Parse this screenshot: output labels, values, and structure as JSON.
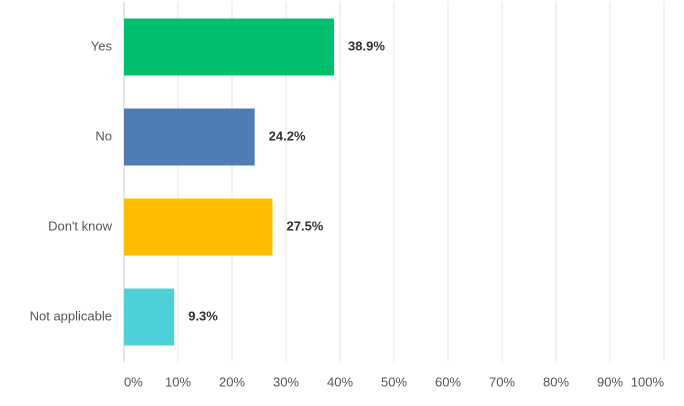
{
  "chart_data": {
    "type": "barh",
    "categories": [
      "Yes",
      "No",
      "Don't know",
      "Not applicable"
    ],
    "values": [
      38.9,
      24.2,
      27.5,
      9.3
    ],
    "value_labels": [
      "38.9%",
      "24.2%",
      "27.5%",
      "9.3%"
    ],
    "colors": [
      "#00bf6f",
      "#507cb6",
      "#ffbf00",
      "#4ed0d8"
    ],
    "xlim": [
      0,
      100
    ],
    "xticks": [
      {
        "value": 0,
        "label": "0%"
      },
      {
        "value": 10,
        "label": "10%"
      },
      {
        "value": 20,
        "label": "20%"
      },
      {
        "value": 30,
        "label": "30%"
      },
      {
        "value": 40,
        "label": "40%"
      },
      {
        "value": 50,
        "label": "50%"
      },
      {
        "value": 60,
        "label": "60%"
      },
      {
        "value": 70,
        "label": "70%"
      },
      {
        "value": 80,
        "label": "80%"
      },
      {
        "value": 90,
        "label": "90%"
      },
      {
        "value": 100,
        "label": "100%"
      }
    ],
    "grid": true
  }
}
